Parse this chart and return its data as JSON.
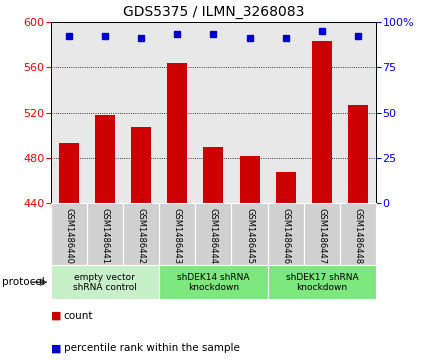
{
  "title": "GDS5375 / ILMN_3268083",
  "samples": [
    "GSM1486440",
    "GSM1486441",
    "GSM1486442",
    "GSM1486443",
    "GSM1486444",
    "GSM1486445",
    "GSM1486446",
    "GSM1486447",
    "GSM1486448"
  ],
  "counts": [
    493,
    518,
    507,
    564,
    490,
    482,
    468,
    583,
    527
  ],
  "percentiles": [
    92,
    92,
    91,
    93,
    93,
    91,
    91,
    95,
    92
  ],
  "ylim_left": [
    440,
    600
  ],
  "ylim_right": [
    0,
    100
  ],
  "yticks_left": [
    440,
    480,
    520,
    560,
    600
  ],
  "yticks_right": [
    0,
    25,
    50,
    75,
    100
  ],
  "bar_color": "#cc0000",
  "dot_color": "#0000cc",
  "bg_color": "#e8e8e8",
  "label_bg_color": "#d0d0d0",
  "groups": [
    {
      "label": "empty vector\nshRNA control",
      "start": 0,
      "end": 3,
      "color": "#c8f0c8"
    },
    {
      "label": "shDEK14 shRNA\nknockdown",
      "start": 3,
      "end": 6,
      "color": "#7de87d"
    },
    {
      "label": "shDEK17 shRNA\nknockdown",
      "start": 6,
      "end": 9,
      "color": "#7de87d"
    }
  ],
  "legend_count_label": "count",
  "legend_pct_label": "percentile rank within the sample",
  "protocol_label": "protocol"
}
